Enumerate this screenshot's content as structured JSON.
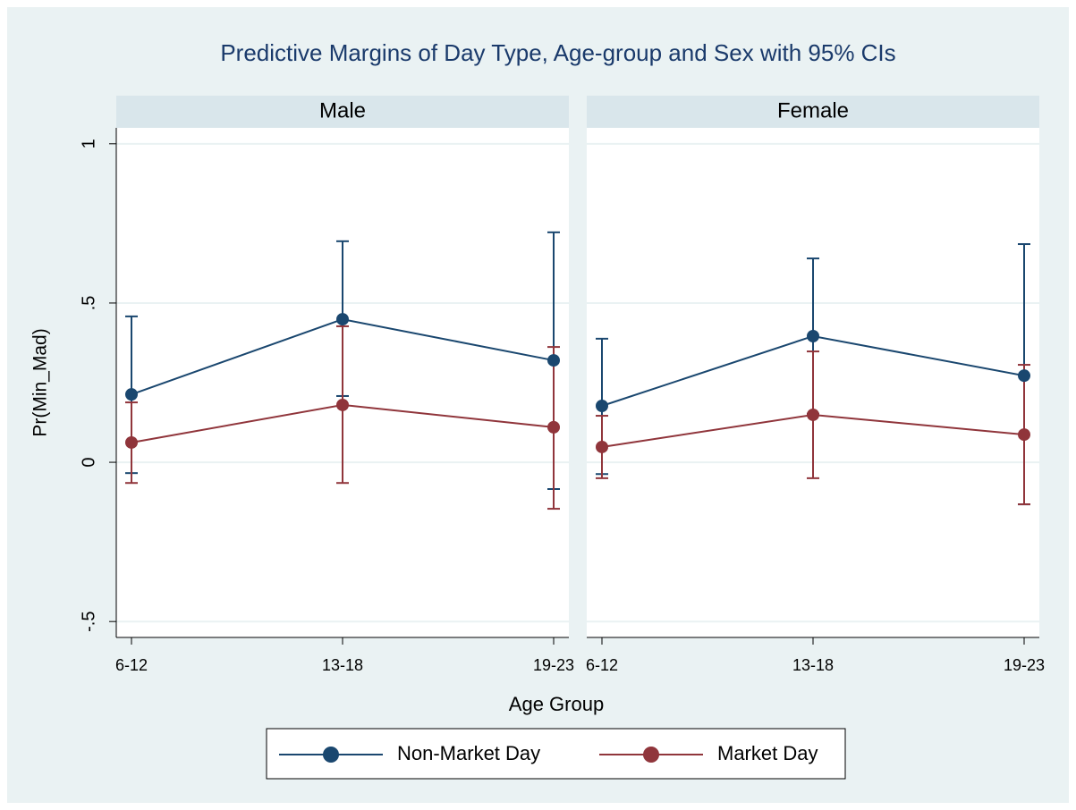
{
  "chart_data": {
    "type": "line",
    "title": "Predictive Margins of Day Type, Age-group and Sex with 95% CIs",
    "x_label": "Age Group",
    "y_label": "Pr(Min_Mad)",
    "categories": [
      "6-12",
      "13-18",
      "19-23"
    ],
    "ylim": [
      -0.55,
      1.05
    ],
    "yticks": [
      {
        "value": -0.5,
        "label": "-.5"
      },
      0,
      {
        "value": 0.5,
        "label": ".5"
      },
      1
    ],
    "grid": true,
    "legend": "bottom",
    "series": [
      {
        "name": "Non-Market Day",
        "color": "#1a476f"
      },
      {
        "name": "Market Day",
        "color": "#90353b"
      }
    ],
    "panels": [
      {
        "title": "Male",
        "series": [
          {
            "values": [
              0.213,
              0.449,
              0.32
            ],
            "lower": [
              -0.034,
              0.208,
              -0.084
            ],
            "upper": [
              0.458,
              0.694,
              0.722
            ]
          },
          {
            "values": [
              0.062,
              0.18,
              0.11
            ],
            "lower": [
              -0.065,
              -0.065,
              -0.146
            ],
            "upper": [
              0.188,
              0.427,
              0.362
            ]
          }
        ]
      },
      {
        "title": "Female",
        "series": [
          {
            "values": [
              0.177,
              0.396,
              0.272
            ],
            "lower": [
              -0.037,
              0.152,
              -0.132
            ],
            "upper": [
              0.388,
              0.64,
              0.685
            ]
          },
          {
            "values": [
              0.048,
              0.149,
              0.087
            ],
            "lower": [
              -0.05,
              -0.05,
              -0.132
            ],
            "upper": [
              0.146,
              0.348,
              0.306
            ]
          }
        ]
      }
    ]
  }
}
